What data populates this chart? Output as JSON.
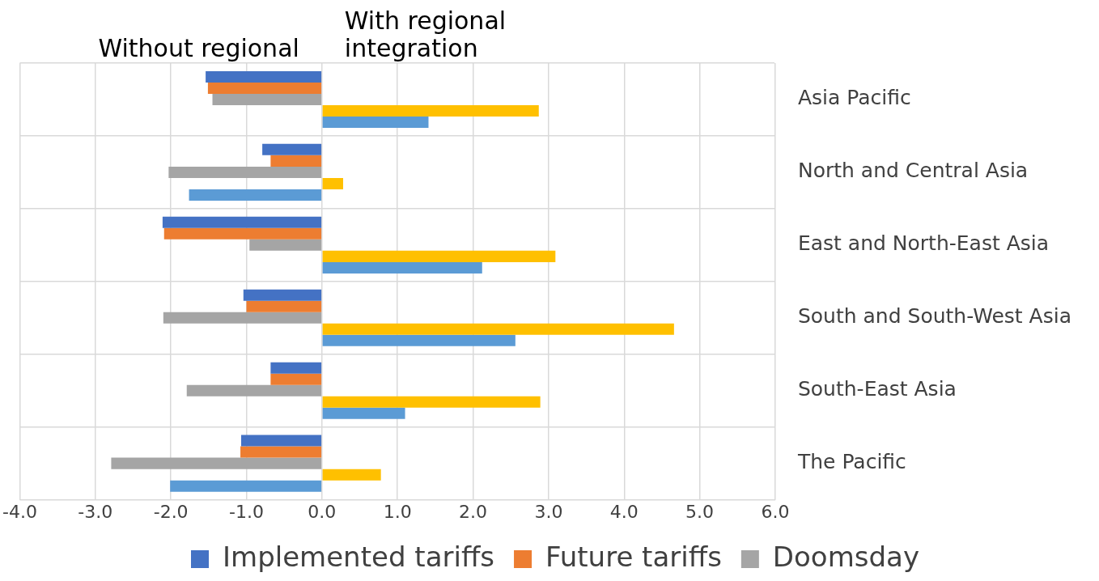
{
  "chart_data": {
    "type": "bar",
    "orientation": "horizontal",
    "categories": [
      "Asia Pacific",
      "North and Central Asia",
      "East and North-East Asia",
      "South and South-West Asia",
      "South-East Asia",
      "The Pacific"
    ],
    "series": [
      {
        "name": "Implemented tariffs",
        "color": "#4472c4",
        "values": [
          -1.54,
          -0.79,
          -2.11,
          -1.04,
          -0.68,
          -1.07
        ]
      },
      {
        "name": "Future tariffs",
        "color": "#ed7d31",
        "values": [
          -1.51,
          -0.68,
          -2.09,
          -1.0,
          -0.68,
          -1.08
        ]
      },
      {
        "name": "Doomsday",
        "color": "#a5a5a5",
        "values": [
          -1.45,
          -2.03,
          -0.96,
          -2.1,
          -1.79,
          -2.79
        ]
      },
      {
        "color": "#ffc000",
        "values": [
          2.87,
          0.28,
          3.09,
          4.66,
          2.89,
          0.78
        ]
      },
      {
        "color": "#5b9bd5",
        "values": [
          1.41,
          -1.76,
          2.12,
          2.56,
          1.1,
          -2.01
        ]
      }
    ],
    "xlim": [
      -4,
      6
    ],
    "xticks": [
      {
        "value": -4,
        "label": "-4.0"
      },
      {
        "value": -3,
        "label": "-3.0"
      },
      {
        "value": -2,
        "label": "-2.0"
      },
      {
        "value": -1,
        "label": "-1.0"
      },
      {
        "value": 0,
        "label": "0.0"
      },
      {
        "value": 1,
        "label": "1.0"
      },
      {
        "value": 2,
        "label": "2.0"
      },
      {
        "value": 3,
        "label": "3.0"
      },
      {
        "value": 4,
        "label": "4.0"
      },
      {
        "value": 5,
        "label": "5.0"
      },
      {
        "value": 6,
        "label": "6.0"
      }
    ],
    "annotations": [
      "Without regional",
      "With regional integration"
    ],
    "grid": true,
    "legend": "bottom"
  }
}
